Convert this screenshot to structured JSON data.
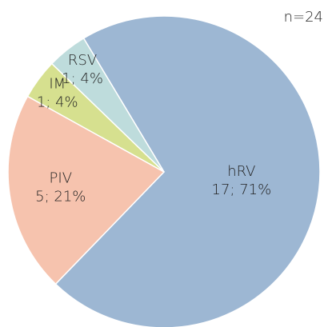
{
  "chart_data": {
    "type": "pie",
    "annotation": "n=24",
    "categories": [
      "hRV",
      "PIV",
      "IM",
      "RSV"
    ],
    "values": [
      17,
      5,
      1,
      1
    ],
    "value_labels": [
      "17; 71%",
      "5; 21%",
      "1; 4%",
      "1; 4%"
    ],
    "colors": [
      "#9db7d3",
      "#f6c3ae",
      "#d6e08f",
      "#bedcdc"
    ]
  }
}
